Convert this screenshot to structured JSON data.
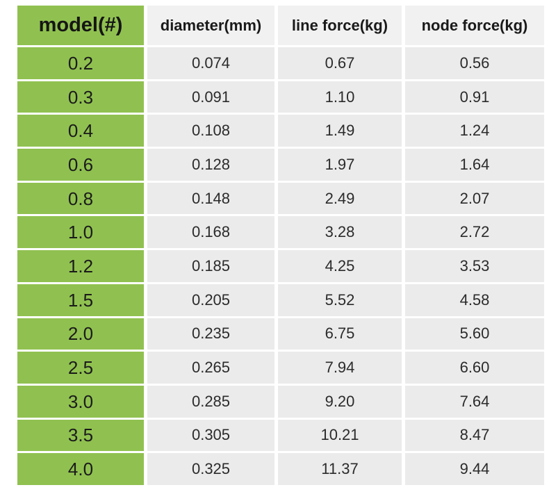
{
  "chart_data": {
    "type": "table",
    "columns": [
      "model(#)",
      "diameter(mm)",
      "line force(kg)",
      "node force(kg)"
    ],
    "rows": [
      [
        "0.2",
        "0.074",
        "0.67",
        "0.56"
      ],
      [
        "0.3",
        "0.091",
        "1.10",
        "0.91"
      ],
      [
        "0.4",
        "0.108",
        "1.49",
        "1.24"
      ],
      [
        "0.6",
        "0.128",
        "1.97",
        "1.64"
      ],
      [
        "0.8",
        "0.148",
        "2.49",
        "2.07"
      ],
      [
        "1.0",
        "0.168",
        "3.28",
        "2.72"
      ],
      [
        "1.2",
        "0.185",
        "4.25",
        "3.53"
      ],
      [
        "1.5",
        "0.205",
        "5.52",
        "4.58"
      ],
      [
        "2.0",
        "0.235",
        "6.75",
        "5.60"
      ],
      [
        "2.5",
        "0.265",
        "7.94",
        "6.60"
      ],
      [
        "3.0",
        "0.285",
        "9.20",
        "7.64"
      ],
      [
        "3.5",
        "0.305",
        "10.21",
        "8.47"
      ],
      [
        "4.0",
        "0.325",
        "11.37",
        "9.44"
      ]
    ],
    "title": "",
    "layout_hints": {
      "model_column_highlighted": true,
      "grid_gaps_color": "#ffffff"
    }
  },
  "colors": {
    "model_column_green": "#90c150",
    "body_cell_gray": "#ebebeb",
    "header_cell_gray": "#f1f1f1",
    "text_dark": "#1e1e1e"
  }
}
